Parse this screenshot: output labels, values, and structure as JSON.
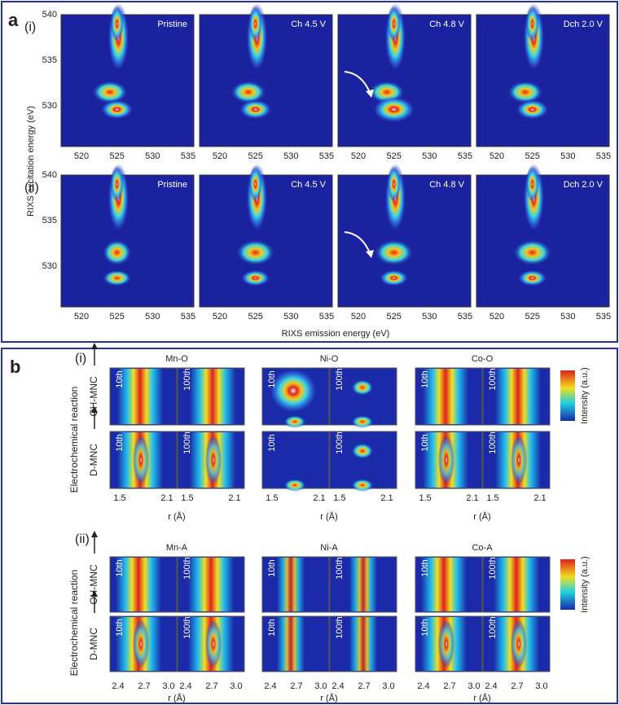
{
  "panel_a": {
    "label": "a",
    "rows": [
      "(i)",
      "(ii)"
    ],
    "plots": [
      "Pristine",
      "Ch 4.5 V",
      "Ch 4.8 V",
      "Dch 2.0 V"
    ],
    "y_axis": {
      "label": "RIXS excitation energy (eV)",
      "ticks": [
        "540",
        "535",
        "530"
      ]
    },
    "x_axis": {
      "label": "RIXS emission energy (eV)",
      "ticks": [
        "520",
        "525",
        "530",
        "535"
      ]
    }
  },
  "panel_b": {
    "label": "b",
    "y_axis_label": "Electrochemical reaction",
    "row_labels": [
      "OH-MNC",
      "D-MNC"
    ],
    "cycle_labels": [
      "10th",
      "100th"
    ],
    "colorbar_label": "Intensity (a.u.)",
    "x_axis_label": "r (Å)",
    "sections": [
      {
        "label": "(i)",
        "groups": [
          "Mn-O",
          "Ni-O",
          "Co-O"
        ],
        "ticks": [
          "1.5",
          "2.1"
        ]
      },
      {
        "label": "(ii)",
        "groups": [
          "Mn-A",
          "Ni-A",
          "Co-A"
        ],
        "ticks": [
          "2.4",
          "2.7",
          "3.0"
        ]
      }
    ]
  }
}
